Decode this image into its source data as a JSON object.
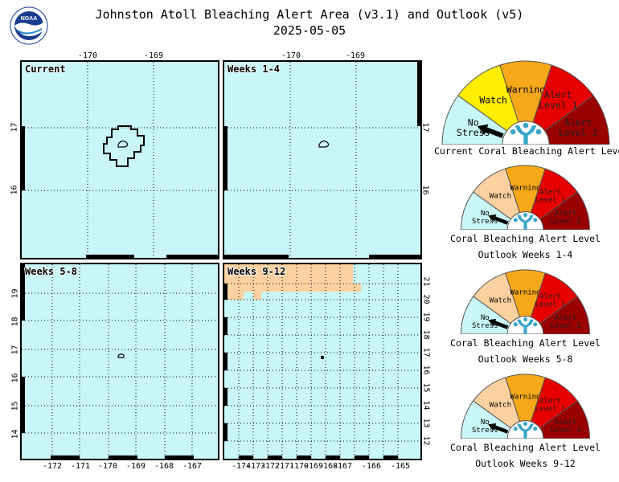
{
  "header": {
    "title_line1": "Johnston Atoll Bleaching Alert Area (v3.1) and Outlook (v5)",
    "title_line2": "2025-05-05",
    "logo_text": "NOAA"
  },
  "panels": {
    "current": {
      "label": "Current",
      "top_ticks": [
        "-170",
        "-169"
      ],
      "right_ticks": [
        "17",
        "16"
      ],
      "left_ticks": [
        "17",
        "16"
      ]
    },
    "weeks_1_4": {
      "label": "Weeks 1-4",
      "top_ticks": [
        "-170",
        "-169"
      ],
      "right_ticks": [
        "17",
        "16"
      ]
    },
    "weeks_5_8": {
      "label": "Weeks 5-8",
      "left_ticks": [
        "19",
        "18",
        "17",
        "16",
        "15",
        "14"
      ],
      "bottom_ticks": [
        "-172",
        "-171",
        "-170",
        "-169",
        "-168",
        "-167"
      ]
    },
    "weeks_9_12": {
      "label": "Weeks 9-12",
      "right_ticks": [
        "21",
        "20",
        "19",
        "18",
        "17",
        "16",
        "15",
        "14",
        "13",
        "12"
      ],
      "bottom_ticks": [
        "-174",
        "-173",
        "-172",
        "-171",
        "-170",
        "-169",
        "-168",
        "-167",
        "-166",
        "-165"
      ]
    }
  },
  "gauges": {
    "segments": [
      "No Stress",
      "Watch",
      "Warning",
      "Alert Level 1",
      "Alert Level 2"
    ],
    "segment_lines": [
      [
        "No",
        "Stress"
      ],
      [
        "Watch"
      ],
      [
        "Warning"
      ],
      [
        "Alert",
        "Level 1"
      ],
      [
        "Alert",
        "Level 2"
      ]
    ],
    "current": {
      "caption": "Current Coral Bleaching Alert Level",
      "level": "No Stress"
    },
    "weeks_1_4": {
      "caption_line1": "Coral Bleaching Alert Level",
      "caption_line2": "Outlook Weeks 1-4",
      "level": "No Stress"
    },
    "weeks_5_8": {
      "caption_line1": "Coral Bleaching Alert Level",
      "caption_line2": "Outlook Weeks 5-8",
      "level": "No Stress"
    },
    "weeks_9_12": {
      "caption_line1": "Coral Bleaching Alert Level",
      "caption_line2": "Outlook Weeks 9-12",
      "level": "No Stress"
    }
  },
  "colors": {
    "no_stress": "#c9f6f6",
    "watch_current": "#ffee00",
    "watch_outlook": "#fcd1a0",
    "warning": "#f7a818",
    "alert1": "#e60000",
    "alert2": "#990000",
    "coral": "#3aa6c8"
  }
}
